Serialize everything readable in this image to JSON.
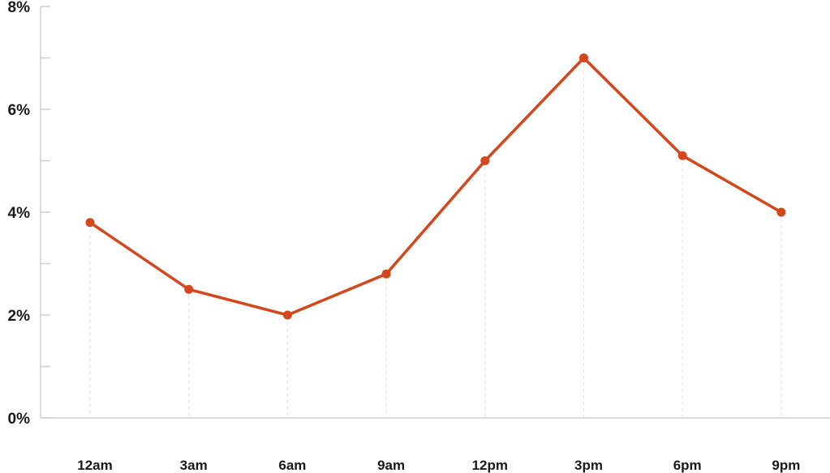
{
  "chart_data": {
    "type": "line",
    "title": "",
    "xlabel": "",
    "ylabel": "",
    "categories": [
      "12am",
      "3am",
      "6am",
      "9am",
      "12pm",
      "3pm",
      "6pm",
      "9pm"
    ],
    "series": [
      {
        "values": [
          3.8,
          2.5,
          2.0,
          2.8,
          5.0,
          7.0,
          5.1,
          4.0
        ]
      }
    ],
    "ylim": [
      0,
      8
    ],
    "y_ticks": [
      {
        "value": 0,
        "label": "0%"
      },
      {
        "value": 2,
        "label": "2%"
      },
      {
        "value": 4,
        "label": "4%"
      },
      {
        "value": 6,
        "label": "6%"
      },
      {
        "value": 8,
        "label": "8%"
      }
    ],
    "y_minor_step": 1,
    "grid": false,
    "drop_lines": true,
    "colors": {
      "line": "#d4461b",
      "axis": "#cfcfcf",
      "drop_line": "#e2e2e2",
      "x_label_muted": "#555555"
    }
  }
}
